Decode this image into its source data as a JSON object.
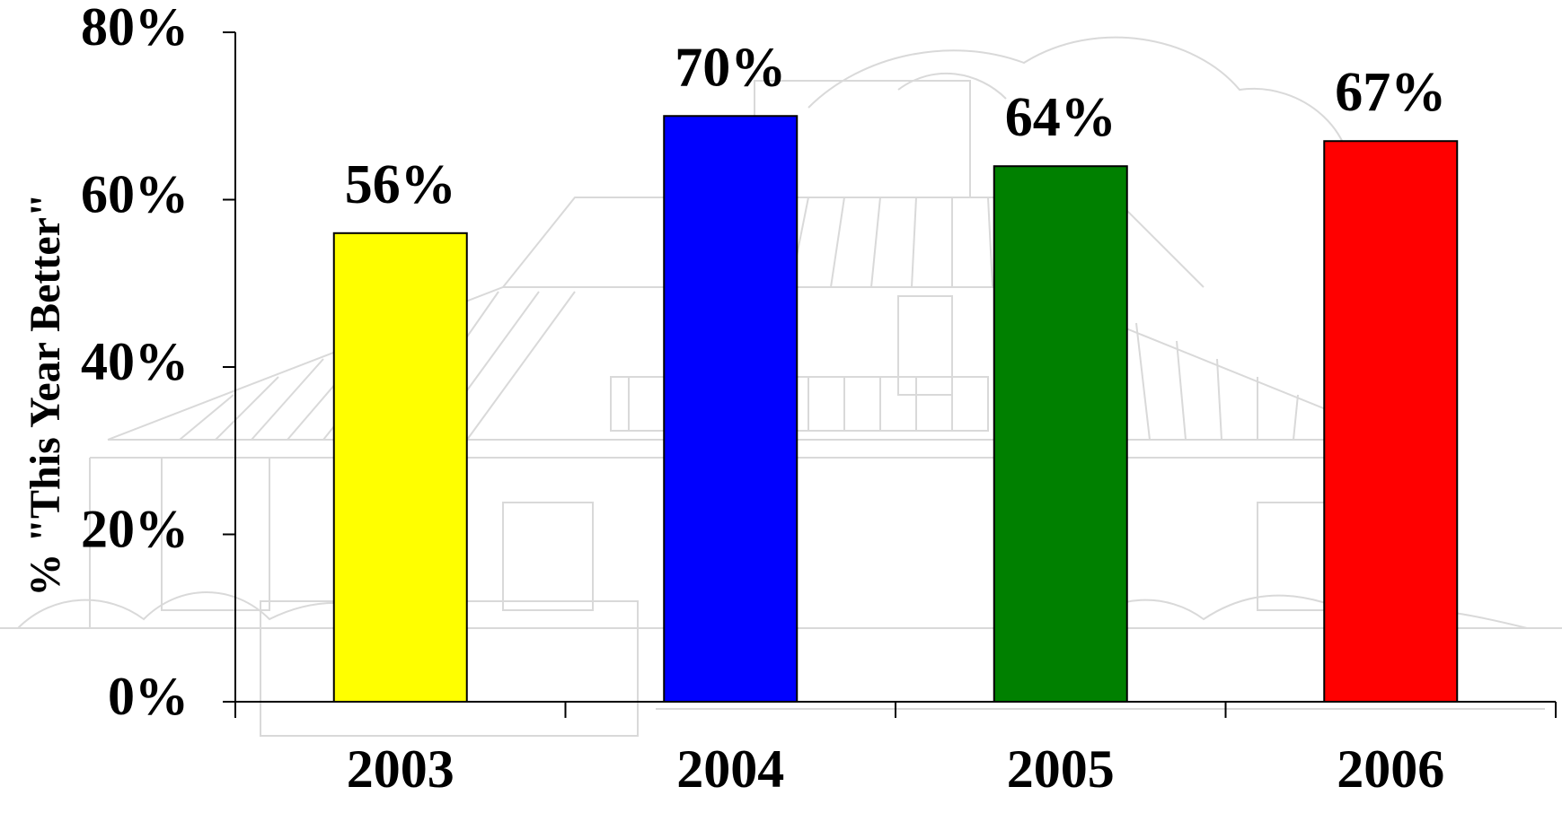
{
  "chart_data": {
    "type": "bar",
    "title": "",
    "xlabel": "",
    "ylabel": "% \"This Year Better\"",
    "categories": [
      "2003",
      "2004",
      "2005",
      "2006"
    ],
    "values": [
      56,
      70,
      64,
      67
    ],
    "value_labels": [
      "56%",
      "70%",
      "64%",
      "67%"
    ],
    "bar_colors": [
      "#ffff00",
      "#0000ff",
      "#008000",
      "#ff0000"
    ],
    "ylim": [
      0,
      80
    ],
    "yticks": [
      0,
      20,
      40,
      60,
      80
    ],
    "ytick_labels": [
      "0%",
      "20%",
      "40%",
      "60%",
      "80%"
    ],
    "grid": false,
    "legend": "none",
    "background": "faint sketch of a house"
  }
}
